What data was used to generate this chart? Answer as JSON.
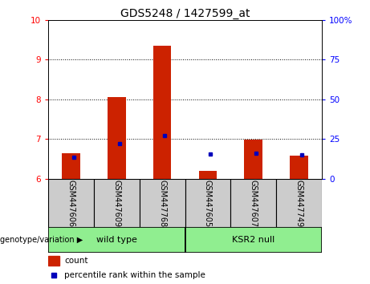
{
  "title": "GDS5248 / 1427599_at",
  "samples": [
    "GSM447606",
    "GSM447609",
    "GSM447768",
    "GSM447605",
    "GSM447607",
    "GSM447749"
  ],
  "red_values": [
    6.65,
    8.05,
    9.35,
    6.2,
    6.98,
    6.58
  ],
  "blue_values": [
    6.55,
    6.88,
    7.1,
    6.62,
    6.65,
    6.6
  ],
  "ylim_left": [
    6,
    10
  ],
  "ylim_right": [
    0,
    100
  ],
  "yticks_left": [
    6,
    7,
    8,
    9,
    10
  ],
  "yticks_right": [
    0,
    25,
    50,
    75,
    100
  ],
  "ytick_labels_right": [
    "0",
    "25",
    "50",
    "75",
    "100%"
  ],
  "groups": [
    {
      "label": "wild type",
      "indices": [
        0,
        1,
        2
      ]
    },
    {
      "label": "KSR2 null",
      "indices": [
        3,
        4,
        5
      ]
    }
  ],
  "group_label": "genotype/variation ▶",
  "legend_count_label": "count",
  "legend_percentile_label": "percentile rank within the sample",
  "bar_color": "#cc2200",
  "marker_color": "#0000bb",
  "bg_color": "#cccccc",
  "plot_bg": "#ffffff",
  "title_fontsize": 10,
  "tick_fontsize": 7.5,
  "label_fontsize": 7,
  "group_fontsize": 8
}
